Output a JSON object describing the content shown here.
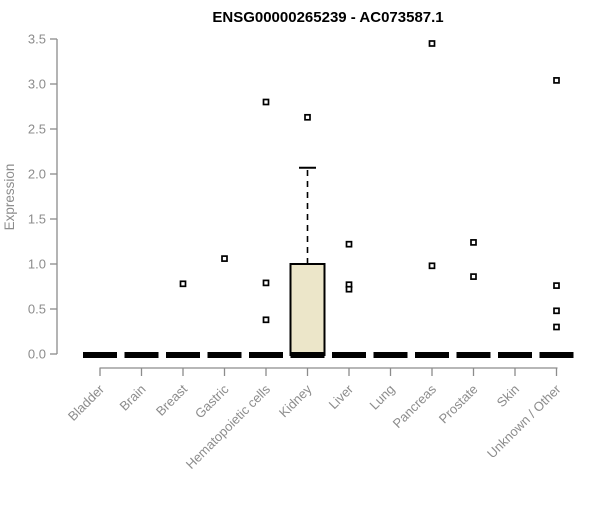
{
  "chart_data": {
    "type": "boxplot",
    "title": "ENSG00000265239 - AC073587.1",
    "ylabel": "Expression",
    "xlabel": "",
    "ylim": [
      0.0,
      3.5
    ],
    "yticks": [
      0.0,
      0.5,
      1.0,
      1.5,
      2.0,
      2.5,
      3.0,
      3.5
    ],
    "grid": "off",
    "legend": "none",
    "categories": [
      "Bladder",
      "Brain",
      "Breast",
      "Gastric",
      "Hematopoietic cells",
      "Kidney",
      "Liver",
      "Lung",
      "Pancreas",
      "Prostate",
      "Skin",
      "Unknown / Other"
    ],
    "boxes": [
      {
        "category": "Bladder",
        "q1": 0.0,
        "median": 0.0,
        "q3": 0.0,
        "whisker_low": 0.0,
        "whisker_high": 0.0,
        "outliers": []
      },
      {
        "category": "Brain",
        "q1": 0.0,
        "median": 0.0,
        "q3": 0.0,
        "whisker_low": 0.0,
        "whisker_high": 0.0,
        "outliers": []
      },
      {
        "category": "Breast",
        "q1": 0.0,
        "median": 0.0,
        "q3": 0.0,
        "whisker_low": 0.0,
        "whisker_high": 0.0,
        "outliers": [
          0.78
        ]
      },
      {
        "category": "Gastric",
        "q1": 0.0,
        "median": 0.0,
        "q3": 0.0,
        "whisker_low": 0.0,
        "whisker_high": 0.0,
        "outliers": [
          1.06
        ]
      },
      {
        "category": "Hematopoietic cells",
        "q1": 0.0,
        "median": 0.0,
        "q3": 0.0,
        "whisker_low": 0.0,
        "whisker_high": 0.0,
        "outliers": [
          2.8,
          0.79,
          0.38
        ]
      },
      {
        "category": "Kidney",
        "q1": 0.0,
        "median": 0.0,
        "q3": 1.0,
        "whisker_low": 0.0,
        "whisker_high": 2.07,
        "outliers": [
          2.63
        ]
      },
      {
        "category": "Liver",
        "q1": 0.0,
        "median": 0.0,
        "q3": 0.0,
        "whisker_low": 0.0,
        "whisker_high": 0.0,
        "outliers": [
          1.22,
          0.77,
          0.72
        ]
      },
      {
        "category": "Lung",
        "q1": 0.0,
        "median": 0.0,
        "q3": 0.0,
        "whisker_low": 0.0,
        "whisker_high": 0.0,
        "outliers": []
      },
      {
        "category": "Pancreas",
        "q1": 0.0,
        "median": 0.0,
        "q3": 0.0,
        "whisker_low": 0.0,
        "whisker_high": 0.0,
        "outliers": [
          3.45,
          0.98
        ]
      },
      {
        "category": "Prostate",
        "q1": 0.0,
        "median": 0.0,
        "q3": 0.0,
        "whisker_low": 0.0,
        "whisker_high": 0.0,
        "outliers": [
          1.24,
          0.86
        ]
      },
      {
        "category": "Skin",
        "q1": 0.0,
        "median": 0.0,
        "q3": 0.0,
        "whisker_low": 0.0,
        "whisker_high": 0.0,
        "outliers": []
      },
      {
        "category": "Unknown / Other",
        "q1": 0.0,
        "median": 0.0,
        "q3": 0.0,
        "whisker_low": 0.0,
        "whisker_high": 0.0,
        "outliers": [
          3.04,
          0.76,
          0.48,
          0.3
        ]
      }
    ],
    "colors": {
      "box_fill": "#ECE6C9",
      "box_border": "#000000",
      "median_bar": "#000000",
      "whisker": "#000000",
      "outlier_stroke": "#000000",
      "outlier_fill": "#ffffff",
      "axis": "#8C8C8C",
      "tick_label": "#8C8C8C",
      "title": "#000000",
      "background": "#ffffff"
    }
  }
}
